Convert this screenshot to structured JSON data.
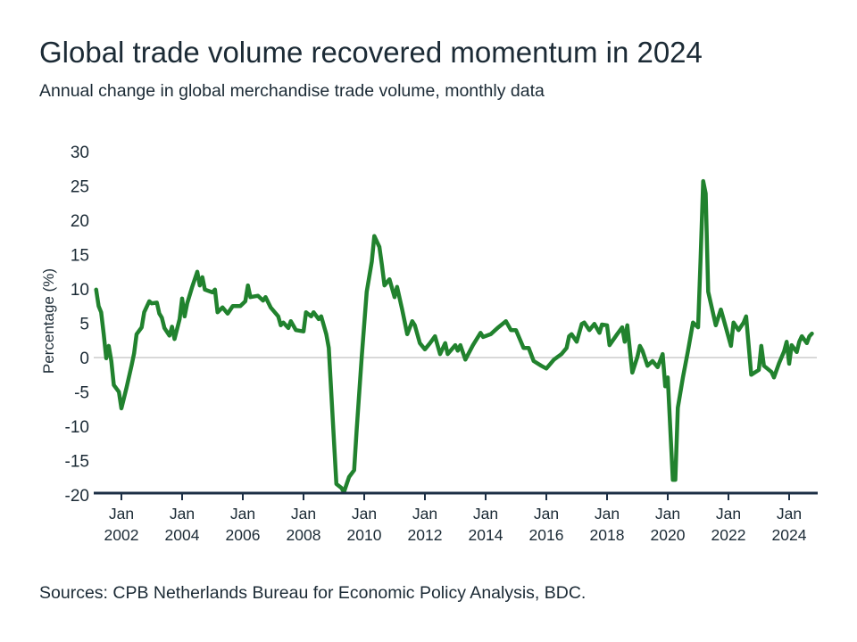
{
  "title": "Global trade volume recovered momentum in 2024",
  "subtitle": "Annual change in global merchandise trade volume, monthly data",
  "source": "Sources: CPB Netherlands Bureau for Economic Policy Analysis, BDC.",
  "colors": {
    "line": "#21822e",
    "axis": "#1c2f45",
    "zero_line": "#cccccc",
    "text": "#1b2a35"
  },
  "chart_data": {
    "type": "line",
    "ylabel": "Percentage (%)",
    "xlabel": "",
    "ylim": [
      -20,
      30
    ],
    "yticks": [
      "30",
      "25",
      "20",
      "15",
      "10",
      "5",
      "0",
      "-5",
      "-10",
      "-15",
      "-20"
    ],
    "xticks": [
      {
        "month": "Jan",
        "year": "2002"
      },
      {
        "month": "Jan",
        "year": "2004"
      },
      {
        "month": "Jan",
        "year": "2006"
      },
      {
        "month": "Jan",
        "year": "2008"
      },
      {
        "month": "Jan",
        "year": "2010"
      },
      {
        "month": "Jan",
        "year": "2012"
      },
      {
        "month": "Jan",
        "year": "2014"
      },
      {
        "month": "Jan",
        "year": "2016"
      },
      {
        "month": "Jan",
        "year": "2018"
      },
      {
        "month": "Jan",
        "year": "2020"
      },
      {
        "month": "Jan",
        "year": "2022"
      },
      {
        "month": "Jan",
        "year": "2024"
      }
    ],
    "grid": "zero line only",
    "series": [
      {
        "x": [
          "2001-03",
          "2001-04",
          "2001-05",
          "2001-06",
          "2001-07",
          "2001-08",
          "2001-09",
          "2001-10",
          "2001-12",
          "2002-01",
          "2002-03",
          "2002-05",
          "2002-06",
          "2002-07",
          "2002-09",
          "2002-10",
          "2002-12",
          "2003-01",
          "2003-03",
          "2003-04",
          "2003-05",
          "2003-06",
          "2003-08",
          "2003-09",
          "2003-10",
          "2003-12",
          "2004-01",
          "2004-02",
          "2004-03",
          "2004-05",
          "2004-07",
          "2004-08",
          "2004-09",
          "2004-10",
          "2005-01",
          "2005-02",
          "2005-03",
          "2005-05",
          "2005-07",
          "2005-09",
          "2005-12",
          "2006-02",
          "2006-03",
          "2006-04",
          "2006-07",
          "2006-09",
          "2006-10",
          "2006-12",
          "2007-03",
          "2007-04",
          "2007-05",
          "2007-07",
          "2007-08",
          "2007-10",
          "2008-01",
          "2008-02",
          "2008-04",
          "2008-05",
          "2008-07",
          "2008-08",
          "2008-10",
          "2008-11",
          "2009-02",
          "2009-04",
          "2009-05",
          "2009-07",
          "2009-09",
          "2009-10",
          "2009-12",
          "2010-02",
          "2010-04",
          "2010-05",
          "2010-07",
          "2010-08",
          "2010-09",
          "2010-11",
          "2011-01",
          "2011-02",
          "2011-04",
          "2011-06",
          "2011-08",
          "2011-09",
          "2011-11",
          "2012-01",
          "2012-03",
          "2012-05",
          "2012-07",
          "2012-09",
          "2012-10",
          "2013-01",
          "2013-02",
          "2013-03",
          "2013-05",
          "2013-08",
          "2013-11",
          "2013-12",
          "2014-03",
          "2014-06",
          "2014-09",
          "2014-11",
          "2015-01",
          "2015-04",
          "2015-06",
          "2015-08",
          "2015-11",
          "2016-01",
          "2016-04",
          "2016-07",
          "2016-09",
          "2016-10",
          "2016-11",
          "2017-01",
          "2017-03",
          "2017-04",
          "2017-06",
          "2017-08",
          "2017-10",
          "2017-11",
          "2018-01",
          "2018-02",
          "2018-05",
          "2018-07",
          "2018-08",
          "2018-09",
          "2018-11",
          "2019-01",
          "2019-02",
          "2019-03",
          "2019-05",
          "2019-07",
          "2019-09",
          "2019-11",
          "2019-12",
          "2020-01",
          "2020-03",
          "2020-04",
          "2020-05",
          "2020-07",
          "2020-09",
          "2020-11",
          "2021-01",
          "2021-02",
          "2021-03",
          "2021-04",
          "2021-05",
          "2021-08",
          "2021-10",
          "2021-11",
          "2022-02",
          "2022-03",
          "2022-05",
          "2022-07",
          "2022-08",
          "2022-10",
          "2023-01",
          "2023-02",
          "2023-03",
          "2023-06",
          "2023-07",
          "2023-09",
          "2023-11",
          "2023-12",
          "2024-01",
          "2024-02",
          "2024-04",
          "2024-05",
          "2024-06",
          "2024-08",
          "2024-09",
          "2024-10"
        ],
        "y": [
          9.9,
          7.5,
          6.6,
          3.4,
          -0.1,
          1.7,
          -0.5,
          -4,
          -5,
          -7.4,
          -4.4,
          -1.2,
          0.6,
          3.4,
          4.4,
          6.6,
          8.2,
          7.9,
          8.0,
          6.4,
          5.8,
          4.3,
          3.2,
          4.5,
          2.7,
          5.6,
          8.6,
          6,
          7.9,
          10.3,
          12.5,
          10.5,
          11.7,
          9.9,
          9.5,
          9.9,
          6.6,
          7.3,
          6.4,
          7.5,
          7.5,
          8.2,
          10.5,
          8.8,
          9.0,
          8.3,
          8.8,
          7.3,
          6.0,
          4.7,
          5.1,
          4.3,
          5.3,
          4.0,
          3.8,
          6.6,
          6.0,
          6.6,
          5.6,
          6.0,
          3.4,
          1.4,
          -18.4,
          -19,
          -19.6,
          -17.4,
          -16.4,
          -10.6,
          0.1,
          9.6,
          14,
          17.7,
          16.1,
          13.5,
          10.5,
          11.4,
          8.8,
          10.3,
          7,
          3.4,
          5.3,
          4.7,
          2.1,
          1.2,
          2.1,
          3.1,
          0.5,
          2.1,
          0.5,
          1.8,
          1,
          1.8,
          -0.3,
          1.8,
          3.6,
          3,
          3.4,
          4.4,
          5.3,
          4,
          4,
          1.4,
          1.4,
          -0.5,
          -1.2,
          -1.6,
          -0.3,
          0.5,
          1.4,
          3.1,
          3.4,
          2.3,
          4.9,
          5.1,
          4,
          4.9,
          3.6,
          4.8,
          4.7,
          1.8,
          3.4,
          4.4,
          2.3,
          4.7,
          -2.2,
          0.1,
          1.7,
          1,
          -1.2,
          -0.5,
          -1.4,
          0.5,
          -4.2,
          -2.9,
          -17.8,
          -17.8,
          -7.3,
          -2.9,
          1,
          5.1,
          4.4,
          14.4,
          25.7,
          23.9,
          9.6,
          4.7,
          7,
          5.7,
          1.7,
          5.1,
          4,
          5.1,
          6,
          -2.5,
          -1.8,
          1.7,
          -1.2,
          -2.1,
          -2.9,
          -0.8,
          0.9,
          2.3,
          -0.9,
          1.8,
          0.8,
          2.3,
          3.1,
          2.1,
          3.1,
          3.5
        ]
      }
    ]
  }
}
